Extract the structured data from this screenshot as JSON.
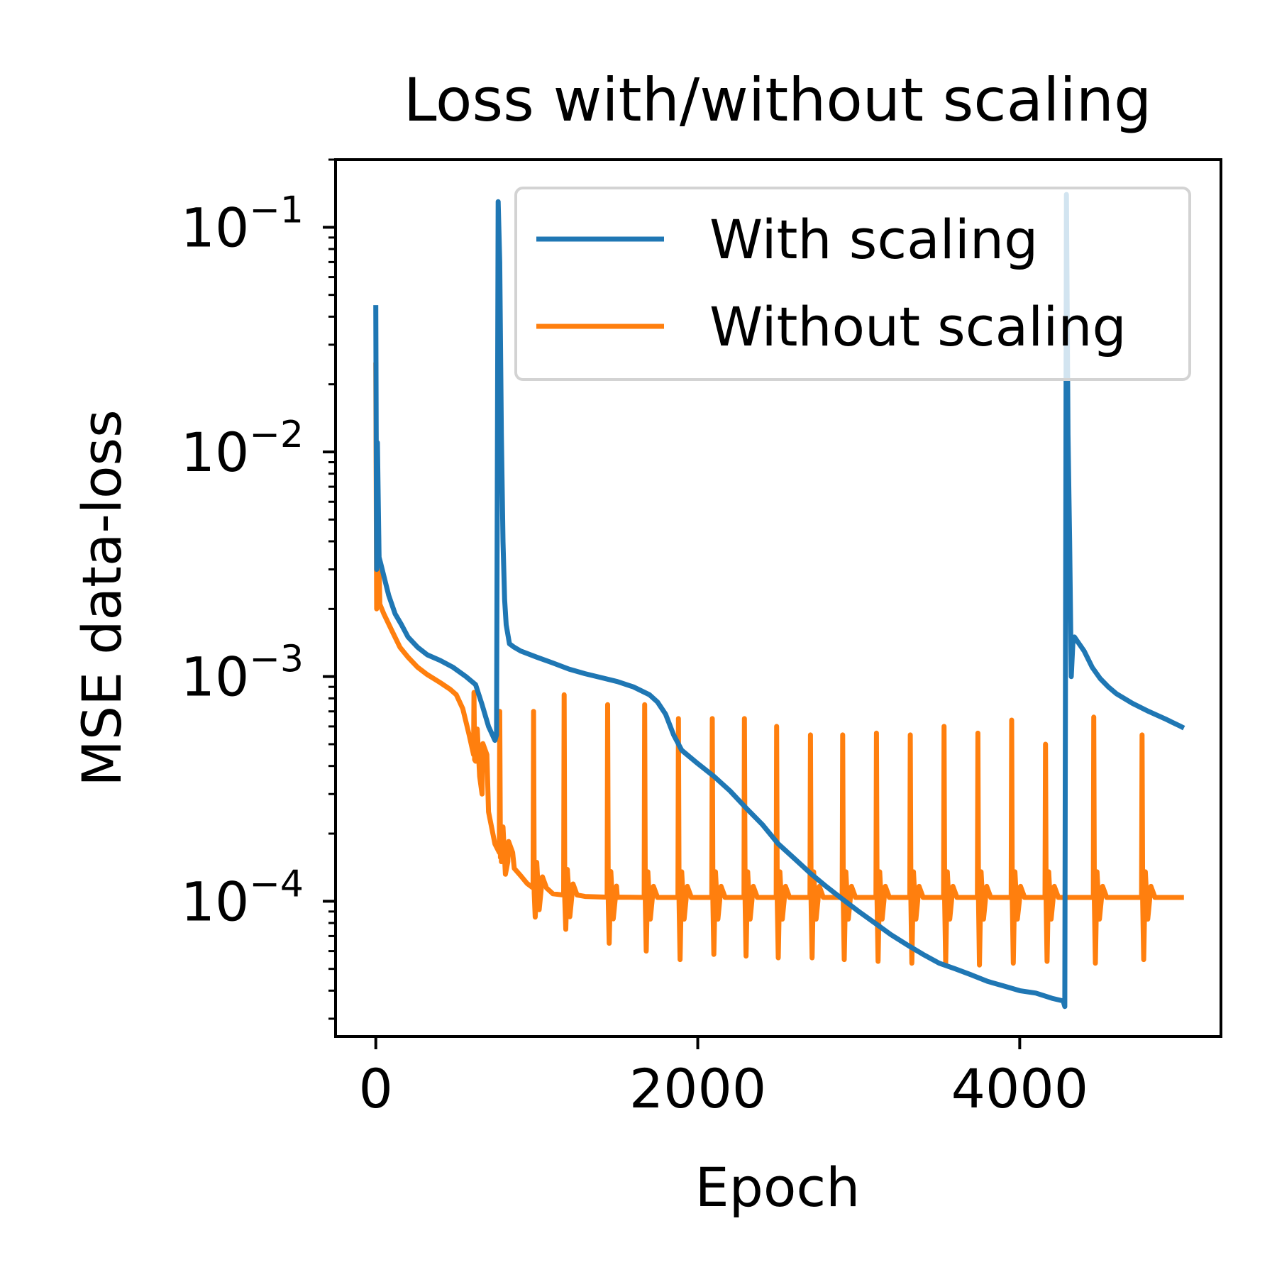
{
  "chart_data": {
    "type": "line",
    "title": "Loss with/without scaling",
    "xlabel": "Epoch",
    "ylabel": "MSE data-loss",
    "xlim": [
      -250,
      5250
    ],
    "ylim": [
      2.5e-05,
      0.2
    ],
    "yscale": "log",
    "grid": false,
    "legend_position": "top-right",
    "x_ticks": [
      {
        "value": 0,
        "label": "0"
      },
      {
        "value": 2000,
        "label": "2000"
      },
      {
        "value": 4000,
        "label": "4000"
      }
    ],
    "y_ticks": [
      {
        "value": 0.1,
        "base": "10",
        "exp": "−1"
      },
      {
        "value": 0.01,
        "base": "10",
        "exp": "−2"
      },
      {
        "value": 0.001,
        "base": "10",
        "exp": "−3"
      },
      {
        "value": 0.0001,
        "base": "10",
        "exp": "−4"
      }
    ],
    "series": [
      {
        "name": "With scaling",
        "color": "#1f77b4",
        "points": [
          [
            0,
            0.045
          ],
          [
            5,
            0.003
          ],
          [
            10,
            0.011
          ],
          [
            20,
            0.0034
          ],
          [
            30,
            0.0032
          ],
          [
            50,
            0.0028
          ],
          [
            80,
            0.0023
          ],
          [
            120,
            0.0019
          ],
          [
            160,
            0.0017
          ],
          [
            200,
            0.0015
          ],
          [
            260,
            0.00135
          ],
          [
            320,
            0.00125
          ],
          [
            400,
            0.00118
          ],
          [
            480,
            0.0011
          ],
          [
            560,
            0.001
          ],
          [
            620,
            0.00092
          ],
          [
            660,
            0.00075
          ],
          [
            700,
            0.0006
          ],
          [
            740,
            0.00052
          ],
          [
            750,
            0.00055
          ],
          [
            760,
            0.13
          ],
          [
            770,
            0.07
          ],
          [
            780,
            0.012
          ],
          [
            790,
            0.004
          ],
          [
            800,
            0.0022
          ],
          [
            810,
            0.0017
          ],
          [
            830,
            0.0014
          ],
          [
            860,
            0.00135
          ],
          [
            900,
            0.0013
          ],
          [
            1000,
            0.00122
          ],
          [
            1100,
            0.00115
          ],
          [
            1200,
            0.00108
          ],
          [
            1300,
            0.00103
          ],
          [
            1400,
            0.00099
          ],
          [
            1500,
            0.00095
          ],
          [
            1600,
            0.0009
          ],
          [
            1700,
            0.00083
          ],
          [
            1750,
            0.00077
          ],
          [
            1800,
            0.00068
          ],
          [
            1850,
            0.00055
          ],
          [
            1900,
            0.00047
          ],
          [
            2000,
            0.00041
          ],
          [
            2100,
            0.00036
          ],
          [
            2200,
            0.00031
          ],
          [
            2300,
            0.00026
          ],
          [
            2400,
            0.00022
          ],
          [
            2500,
            0.00018
          ],
          [
            2600,
            0.000155
          ],
          [
            2700,
            0.000133
          ],
          [
            2800,
            0.000116
          ],
          [
            2900,
            0.000102
          ],
          [
            3000,
            9e-05
          ],
          [
            3100,
            8e-05
          ],
          [
            3200,
            7.1e-05
          ],
          [
            3300,
            6.4e-05
          ],
          [
            3400,
            5.8e-05
          ],
          [
            3500,
            5.3e-05
          ],
          [
            3600,
            5e-05
          ],
          [
            3700,
            4.7e-05
          ],
          [
            3800,
            4.4e-05
          ],
          [
            3900,
            4.2e-05
          ],
          [
            4000,
            4e-05
          ],
          [
            4100,
            3.9e-05
          ],
          [
            4200,
            3.7e-05
          ],
          [
            4270,
            3.6e-05
          ],
          [
            4280,
            3.4e-05
          ],
          [
            4290,
            0.14
          ],
          [
            4300,
            0.012
          ],
          [
            4310,
            0.004
          ],
          [
            4320,
            0.001
          ],
          [
            4330,
            0.0014
          ],
          [
            4340,
            0.0015
          ],
          [
            4400,
            0.0013
          ],
          [
            4450,
            0.0011
          ],
          [
            4500,
            0.00098
          ],
          [
            4550,
            0.0009
          ],
          [
            4600,
            0.00084
          ],
          [
            4700,
            0.00076
          ],
          [
            4800,
            0.0007
          ],
          [
            4900,
            0.00065
          ],
          [
            5000,
            0.0006
          ],
          [
            5020,
            0.00059
          ]
        ]
      },
      {
        "name": "Without scaling",
        "color": "#ff7f0e",
        "points": [
          [
            0,
            0.025
          ],
          [
            5,
            0.002
          ],
          [
            15,
            0.005
          ],
          [
            25,
            0.0021
          ],
          [
            50,
            0.0019
          ],
          [
            100,
            0.0016
          ],
          [
            150,
            0.00135
          ],
          [
            200,
            0.00122
          ],
          [
            260,
            0.0011
          ],
          [
            320,
            0.00102
          ],
          [
            400,
            0.00094
          ],
          [
            460,
            0.00088
          ],
          [
            500,
            0.00083
          ],
          [
            540,
            0.00072
          ],
          [
            580,
            0.00055
          ],
          [
            620,
            0.00042
          ],
          [
            660,
            0.0003
          ],
          [
            700,
            0.00025
          ],
          [
            740,
            0.00018
          ],
          [
            780,
            0.00016
          ],
          [
            820,
            0.00015
          ],
          [
            860,
            0.00014
          ],
          [
            900,
            0.00013
          ],
          [
            940,
            0.00012
          ],
          [
            1000,
            0.000112
          ],
          [
            1100,
            0.000108
          ],
          [
            1200,
            0.000106
          ],
          [
            1300,
            0.000105
          ],
          [
            1500,
            0.000104
          ],
          [
            2000,
            0.000104
          ],
          [
            3000,
            0.000104
          ],
          [
            4000,
            0.000104
          ],
          [
            5020,
            0.000104
          ]
        ],
        "spikes": [
          {
            "x": 610,
            "peak": 0.00085,
            "low": 0.00045
          },
          {
            "x": 770,
            "peak": 0.0007,
            "low": 0.00015
          },
          {
            "x": 980,
            "peak": 0.0007,
            "low": 8.5e-05
          },
          {
            "x": 1170,
            "peak": 0.00083,
            "low": 7.5e-05
          },
          {
            "x": 1440,
            "peak": 0.00075,
            "low": 6.5e-05
          },
          {
            "x": 1670,
            "peak": 0.00075,
            "low": 6e-05
          },
          {
            "x": 1880,
            "peak": 0.00065,
            "low": 5.5e-05
          },
          {
            "x": 2090,
            "peak": 0.00065,
            "low": 5.8e-05
          },
          {
            "x": 2290,
            "peak": 0.00065,
            "low": 5.7e-05
          },
          {
            "x": 2490,
            "peak": 0.0006,
            "low": 5.6e-05
          },
          {
            "x": 2700,
            "peak": 0.00055,
            "low": 5.6e-05
          },
          {
            "x": 2900,
            "peak": 0.00055,
            "low": 5.5e-05
          },
          {
            "x": 3110,
            "peak": 0.00056,
            "low": 5.4e-05
          },
          {
            "x": 3320,
            "peak": 0.00055,
            "low": 5.3e-05
          },
          {
            "x": 3530,
            "peak": 0.0006,
            "low": 5.3e-05
          },
          {
            "x": 3740,
            "peak": 0.00056,
            "low": 5.2e-05
          },
          {
            "x": 3950,
            "peak": 0.00064,
            "low": 5.3e-05
          },
          {
            "x": 4160,
            "peak": 0.0005,
            "low": 5.4e-05
          },
          {
            "x": 4460,
            "peak": 0.00066,
            "low": 5.3e-05
          },
          {
            "x": 4760,
            "peak": 0.00055,
            "low": 5.5e-05
          }
        ]
      }
    ]
  }
}
